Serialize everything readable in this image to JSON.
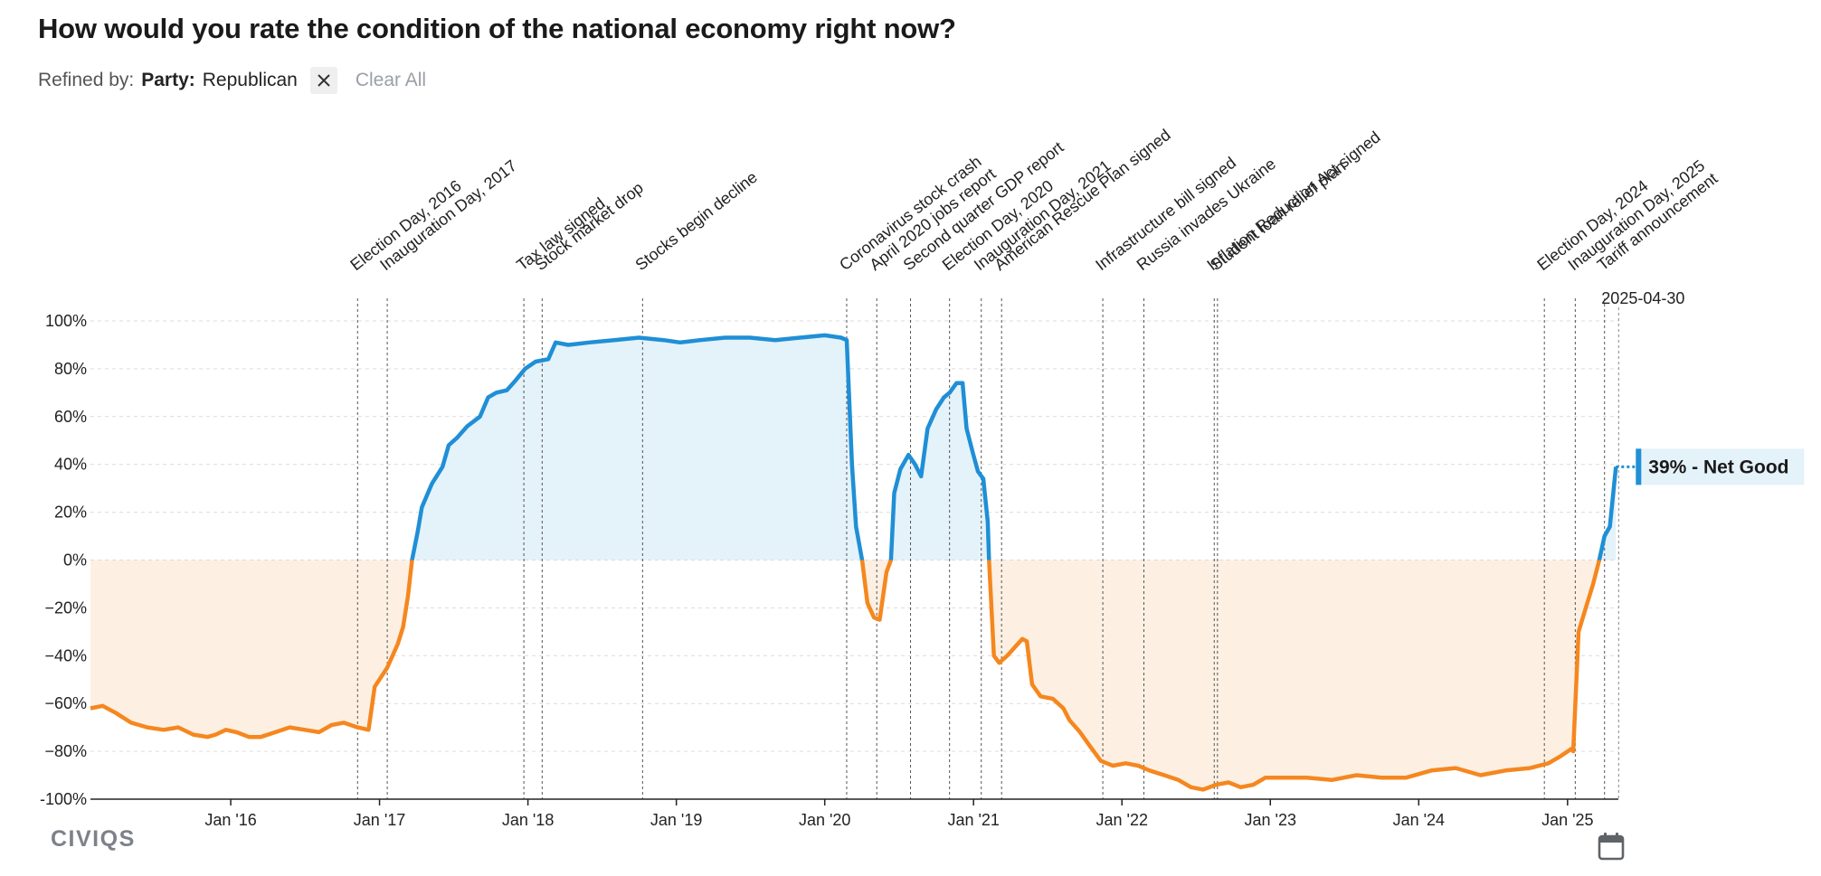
{
  "header": {
    "title": "How would you rate the condition of the national economy right now?",
    "refined_by_label": "Refined by:",
    "filter_key": "Party:",
    "filter_value": "Republican",
    "clear_all": "Clear All"
  },
  "footer": {
    "logo": "CIVIQS"
  },
  "icons": {
    "close": "close-icon",
    "calendar": "calendar-icon"
  },
  "colors": {
    "positive": "#1f8fd6",
    "negative": "#f5871f",
    "positive_fill": "#e4f2fa",
    "negative_fill": "#fdf0e3"
  },
  "chart_data": {
    "type": "area",
    "y_unit": "%",
    "ylim": [
      -100,
      100
    ],
    "yticks": [
      100,
      80,
      60,
      40,
      20,
      0,
      -20,
      -40,
      -60,
      -80,
      -100
    ],
    "ytick_labels": [
      "100%",
      "80%",
      "60%",
      "40%",
      "20%",
      "0%",
      "−20%",
      "−40%",
      "−60%",
      "−80%",
      "-100%"
    ],
    "xlim": [
      "2015-01-21",
      "2025-05-06"
    ],
    "xticks": [
      {
        "date": "2016-01-01",
        "label": "Jan '16"
      },
      {
        "date": "2017-01-01",
        "label": "Jan '17"
      },
      {
        "date": "2018-01-01",
        "label": "Jan '18"
      },
      {
        "date": "2019-01-01",
        "label": "Jan '19"
      },
      {
        "date": "2020-01-01",
        "label": "Jan '20"
      },
      {
        "date": "2021-01-01",
        "label": "Jan '21"
      },
      {
        "date": "2022-01-01",
        "label": "Jan '22"
      },
      {
        "date": "2023-01-01",
        "label": "Jan '23"
      },
      {
        "date": "2024-01-01",
        "label": "Jan '24"
      },
      {
        "date": "2025-01-01",
        "label": "Jan '25"
      }
    ],
    "end_date_label": "2025-04-30",
    "end_value_label": "39% - Net Good",
    "grid": true,
    "events": [
      {
        "date": "2016-11-08",
        "label": "Election Day, 2016"
      },
      {
        "date": "2017-01-20",
        "label": "Inauguration Day, 2017"
      },
      {
        "date": "2017-12-22",
        "label": "Tax law signed"
      },
      {
        "date": "2018-02-05",
        "label": "Stock market drop"
      },
      {
        "date": "2018-10-10",
        "label": "Stocks begin decline"
      },
      {
        "date": "2020-02-24",
        "label": "Coronavirus stock crash"
      },
      {
        "date": "2020-05-08",
        "label": "April 2020 jobs report"
      },
      {
        "date": "2020-07-30",
        "label": "Second quarter GDP report"
      },
      {
        "date": "2020-11-03",
        "label": "Election Day, 2020"
      },
      {
        "date": "2021-01-20",
        "label": "Inauguration Day, 2021"
      },
      {
        "date": "2021-03-11",
        "label": "American Rescue Plan signed"
      },
      {
        "date": "2021-11-15",
        "label": "Infrastructure bill signed"
      },
      {
        "date": "2022-02-24",
        "label": "Russia invades Ukraine"
      },
      {
        "date": "2022-08-16",
        "label": "Inflation Reduction Act signed"
      },
      {
        "date": "2022-08-24",
        "label": "Student loan relief plan"
      },
      {
        "date": "2024-11-05",
        "label": "Election Day, 2024"
      },
      {
        "date": "2025-01-20",
        "label": "Inauguration Day, 2025"
      },
      {
        "date": "2025-04-02",
        "label": "Tariff announcement"
      }
    ],
    "series": [
      {
        "name": "Net Good",
        "points": [
          [
            "2015-01-21",
            -62
          ],
          [
            "2015-02-20",
            -61
          ],
          [
            "2015-03-25",
            -64
          ],
          [
            "2015-05-01",
            -68
          ],
          [
            "2015-06-10",
            -70
          ],
          [
            "2015-07-20",
            -71
          ],
          [
            "2015-08-25",
            -70
          ],
          [
            "2015-10-01",
            -73
          ],
          [
            "2015-11-05",
            -74
          ],
          [
            "2015-11-25",
            -73
          ],
          [
            "2015-12-20",
            -71
          ],
          [
            "2016-01-15",
            -72
          ],
          [
            "2016-02-15",
            -74
          ],
          [
            "2016-03-15",
            -74
          ],
          [
            "2016-04-20",
            -72
          ],
          [
            "2016-05-25",
            -70
          ],
          [
            "2016-07-01",
            -71
          ],
          [
            "2016-08-05",
            -72
          ],
          [
            "2016-09-05",
            -69
          ],
          [
            "2016-10-05",
            -68
          ],
          [
            "2016-11-08",
            -70
          ],
          [
            "2016-12-05",
            -71
          ],
          [
            "2016-12-20",
            -53
          ],
          [
            "2017-01-20",
            -45
          ],
          [
            "2017-02-15",
            -35
          ],
          [
            "2017-02-28",
            -28
          ],
          [
            "2017-03-12",
            -15
          ],
          [
            "2017-03-22",
            0
          ],
          [
            "2017-04-05",
            12
          ],
          [
            "2017-04-15",
            22
          ],
          [
            "2017-05-10",
            32
          ],
          [
            "2017-06-05",
            39
          ],
          [
            "2017-06-20",
            48
          ],
          [
            "2017-07-10",
            51
          ],
          [
            "2017-08-05",
            56
          ],
          [
            "2017-09-05",
            60
          ],
          [
            "2017-09-25",
            68
          ],
          [
            "2017-10-15",
            70
          ],
          [
            "2017-11-10",
            71
          ],
          [
            "2017-12-01",
            75
          ],
          [
            "2017-12-25",
            80
          ],
          [
            "2018-01-20",
            83
          ],
          [
            "2018-02-20",
            84
          ],
          [
            "2018-03-10",
            91
          ],
          [
            "2018-04-10",
            90
          ],
          [
            "2018-06-01",
            91
          ],
          [
            "2018-08-01",
            92
          ],
          [
            "2018-10-01",
            93
          ],
          [
            "2018-12-01",
            92
          ],
          [
            "2019-01-10",
            91
          ],
          [
            "2019-03-01",
            92
          ],
          [
            "2019-05-01",
            93
          ],
          [
            "2019-07-01",
            93
          ],
          [
            "2019-09-01",
            92
          ],
          [
            "2019-11-01",
            93
          ],
          [
            "2020-01-01",
            94
          ],
          [
            "2020-02-10",
            93
          ],
          [
            "2020-02-24",
            92
          ],
          [
            "2020-03-08",
            40
          ],
          [
            "2020-03-18",
            14
          ],
          [
            "2020-04-02",
            0
          ],
          [
            "2020-04-15",
            -18
          ],
          [
            "2020-05-01",
            -24
          ],
          [
            "2020-05-15",
            -25
          ],
          [
            "2020-06-01",
            -5
          ],
          [
            "2020-06-12",
            0
          ],
          [
            "2020-06-20",
            28
          ],
          [
            "2020-07-05",
            38
          ],
          [
            "2020-07-25",
            44
          ],
          [
            "2020-08-10",
            40
          ],
          [
            "2020-08-25",
            35
          ],
          [
            "2020-09-10",
            55
          ],
          [
            "2020-10-01",
            63
          ],
          [
            "2020-10-20",
            68
          ],
          [
            "2020-11-03",
            70
          ],
          [
            "2020-11-20",
            74
          ],
          [
            "2020-12-05",
            74
          ],
          [
            "2020-12-15",
            55
          ],
          [
            "2020-12-30",
            45
          ],
          [
            "2021-01-12",
            37
          ],
          [
            "2021-01-25",
            34
          ],
          [
            "2021-02-05",
            16
          ],
          [
            "2021-02-08",
            0
          ],
          [
            "2021-02-20",
            -40
          ],
          [
            "2021-03-05",
            -43
          ],
          [
            "2021-03-25",
            -40
          ],
          [
            "2021-04-15",
            -36
          ],
          [
            "2021-05-01",
            -33
          ],
          [
            "2021-05-12",
            -34
          ],
          [
            "2021-05-25",
            -52
          ],
          [
            "2021-06-15",
            -57
          ],
          [
            "2021-07-15",
            -58
          ],
          [
            "2021-08-10",
            -62
          ],
          [
            "2021-08-25",
            -67
          ],
          [
            "2021-09-20",
            -72
          ],
          [
            "2021-10-15",
            -78
          ],
          [
            "2021-11-10",
            -84
          ],
          [
            "2021-12-10",
            -86
          ],
          [
            "2022-01-10",
            -85
          ],
          [
            "2022-02-10",
            -86
          ],
          [
            "2022-03-10",
            -88
          ],
          [
            "2022-04-15",
            -90
          ],
          [
            "2022-05-20",
            -92
          ],
          [
            "2022-06-20",
            -95
          ],
          [
            "2022-07-20",
            -96
          ],
          [
            "2022-08-20",
            -94
          ],
          [
            "2022-09-20",
            -93
          ],
          [
            "2022-10-20",
            -95
          ],
          [
            "2022-11-20",
            -94
          ],
          [
            "2022-12-20",
            -91
          ],
          [
            "2023-02-01",
            -91
          ],
          [
            "2023-04-01",
            -91
          ],
          [
            "2023-06-01",
            -92
          ],
          [
            "2023-08-01",
            -90
          ],
          [
            "2023-10-01",
            -91
          ],
          [
            "2023-12-01",
            -91
          ],
          [
            "2024-02-01",
            -88
          ],
          [
            "2024-04-01",
            -87
          ],
          [
            "2024-06-01",
            -90
          ],
          [
            "2024-08-01",
            -88
          ],
          [
            "2024-10-01",
            -87
          ],
          [
            "2024-11-15",
            -85
          ],
          [
            "2024-12-15",
            -82
          ],
          [
            "2025-01-10",
            -79
          ],
          [
            "2025-01-15",
            -80
          ],
          [
            "2025-01-28",
            -30
          ],
          [
            "2025-02-15",
            -20
          ],
          [
            "2025-03-05",
            -10
          ],
          [
            "2025-03-20",
            0
          ],
          [
            "2025-04-02",
            10
          ],
          [
            "2025-04-15",
            14
          ],
          [
            "2025-04-30",
            39
          ]
        ]
      }
    ]
  }
}
